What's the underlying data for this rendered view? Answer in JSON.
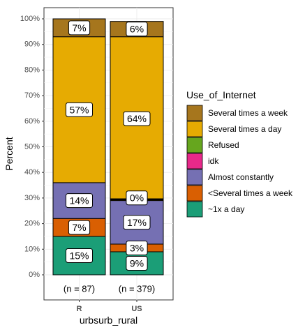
{
  "chart_data": {
    "type": "bar",
    "stacked": true,
    "xlabel": "urbsurb_rural",
    "ylabel": "Percent",
    "ylim": [
      0,
      100
    ],
    "y_ticks": [
      "0%",
      "10%",
      "20%",
      "30%",
      "40%",
      "50%",
      "60%",
      "70%",
      "80%",
      "90%",
      "100%"
    ],
    "categories": [
      "R",
      "US"
    ],
    "counts": [
      "(n = 87)",
      "(n = 379)"
    ],
    "legend_title": "Use_of_Internet",
    "legend_position": "right",
    "grid": true,
    "series": [
      {
        "name": "~1x a day",
        "color": "#1b9e77",
        "values": [
          15,
          9
        ],
        "labels": [
          "15%",
          "9%"
        ]
      },
      {
        "name": "<Several times a week",
        "color": "#d95f02",
        "values": [
          7,
          3
        ],
        "labels": [
          "7%",
          "3%"
        ]
      },
      {
        "name": "Almost constantly",
        "color": "#7570b3",
        "values": [
          14,
          17
        ],
        "labels": [
          "14%",
          "17%"
        ]
      },
      {
        "name": "idk",
        "color": "#e7298a",
        "values": [
          0,
          0
        ],
        "labels": [
          "",
          ""
        ]
      },
      {
        "name": "Refused",
        "color": "#66a61e",
        "values": [
          0,
          0
        ],
        "labels": [
          "",
          ""
        ]
      },
      {
        "name": "Several times a day",
        "color": "#e6ab02",
        "values": [
          57,
          64
        ],
        "labels": [
          "57%",
          "64%"
        ]
      },
      {
        "name": "Several times a week",
        "color": "#a6761d",
        "values": [
          7,
          6
        ],
        "labels": [
          "7%",
          "6%"
        ]
      }
    ],
    "extra_labels": [
      {
        "category": "US",
        "value_at": 29.5,
        "text": "0%"
      }
    ]
  }
}
